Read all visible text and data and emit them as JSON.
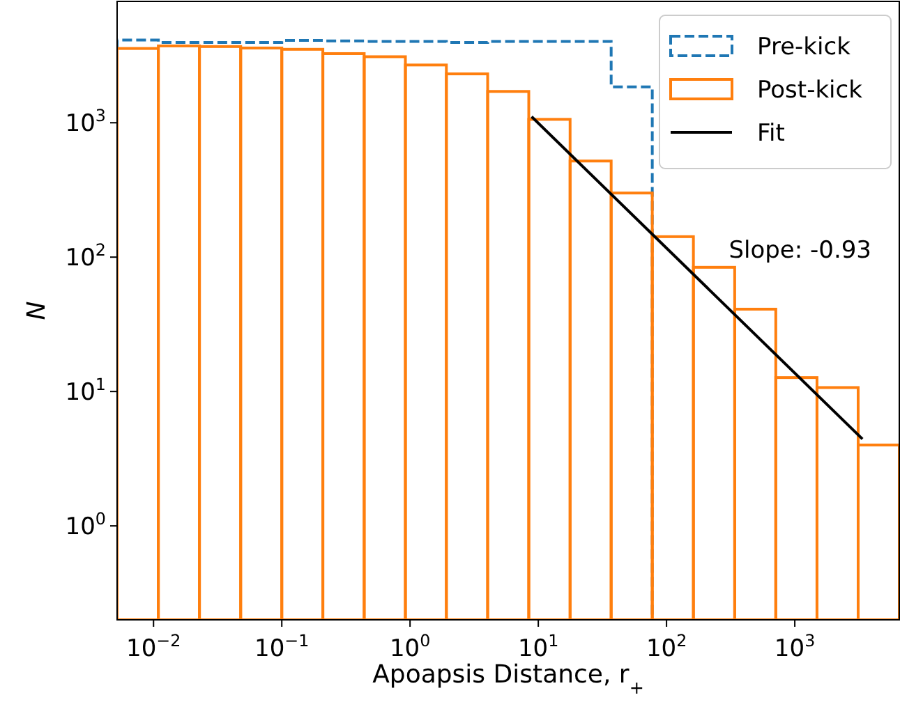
{
  "chart_data": {
    "type": "histogram",
    "xlabel": "Apoapsis Distance, r$_{+}$",
    "ylabel": "N",
    "log": "xy",
    "legend": "top right",
    "grid": false,
    "bins": [
      0.0052,
      0.0109,
      0.0228,
      0.0478,
      0.1,
      0.209,
      0.439,
      0.92,
      1.92,
      4.03,
      8.43,
      17.7,
      37.0,
      77.4,
      162,
      340,
      711,
      1490,
      3120,
      6530
    ],
    "series": [
      {
        "name": "Pre-kick",
        "color": "#1f77b4",
        "line_style": "dashed",
        "values": [
          4130,
          3960,
          3960,
          3960,
          4100,
          4060,
          4030,
          4030,
          3960,
          4030,
          4030,
          4030,
          1850,
          null,
          null,
          null,
          null,
          null,
          null
        ]
      },
      {
        "name": "Post-kick",
        "color": "#ff7f0e",
        "line_style": "solid",
        "values": [
          3570,
          3730,
          3690,
          3600,
          3520,
          3270,
          3100,
          2690,
          2310,
          1710,
          1060,
          519,
          300,
          142,
          84,
          41,
          12.7,
          10.7,
          4.0
        ]
      },
      {
        "name": "Fit",
        "type": "line",
        "color": "#000000",
        "line_style": "solid",
        "x": [
          8.87,
          3370
        ],
        "values": [
          1110,
          4.43
        ]
      }
    ],
    "annotations": [
      "Slope: -0.93"
    ],
    "xlim": [
      0.0052,
      6530
    ],
    "ylim": [
      0.2,
      8000
    ],
    "xticks": [
      {
        "value": 0.01,
        "label": "10$^{−2}$"
      },
      {
        "value": 0.1,
        "label": "10$^{−1}$"
      },
      {
        "value": 1,
        "label": "10$^{0}$"
      },
      {
        "value": 10,
        "label": "10$^{1}$"
      },
      {
        "value": 100,
        "label": "10$^{2}$"
      },
      {
        "value": 1000,
        "label": "10$^{3}$"
      }
    ],
    "yticks": [
      {
        "value": 1,
        "label": "10$^{0}$"
      },
      {
        "value": 10,
        "label": "10$^{1}$"
      },
      {
        "value": 100,
        "label": "10$^{2}$"
      },
      {
        "value": 1000,
        "label": "10$^{3}$"
      }
    ]
  }
}
